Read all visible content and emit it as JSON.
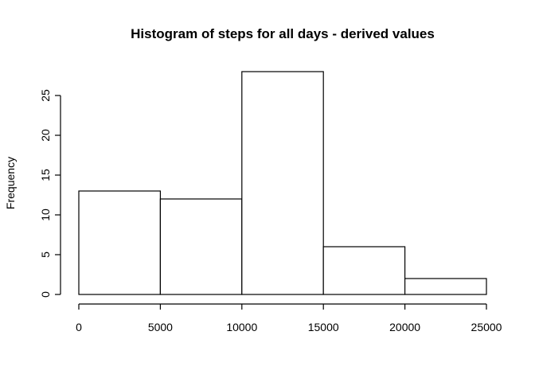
{
  "chart_data": {
    "type": "bar",
    "title": "Histogram of steps for all days - derived values",
    "xlabel": "",
    "ylabel": "Frequency",
    "bins": [
      {
        "from": 0,
        "to": 5000,
        "value": 13
      },
      {
        "from": 5000,
        "to": 10000,
        "value": 12
      },
      {
        "from": 10000,
        "to": 15000,
        "value": 28
      },
      {
        "from": 15000,
        "to": 20000,
        "value": 6
      },
      {
        "from": 20000,
        "to": 25000,
        "value": 2
      }
    ],
    "xlim": [
      0,
      25000
    ],
    "ylim": [
      0,
      28
    ],
    "x_ticks": [
      "0",
      "5000",
      "10000",
      "15000",
      "20000",
      "25000"
    ],
    "y_ticks": [
      "0",
      "5",
      "10",
      "15",
      "20",
      "25"
    ],
    "grid": false,
    "colors": {
      "bar_fill": "#ffffff",
      "bar_stroke": "#000000"
    }
  }
}
